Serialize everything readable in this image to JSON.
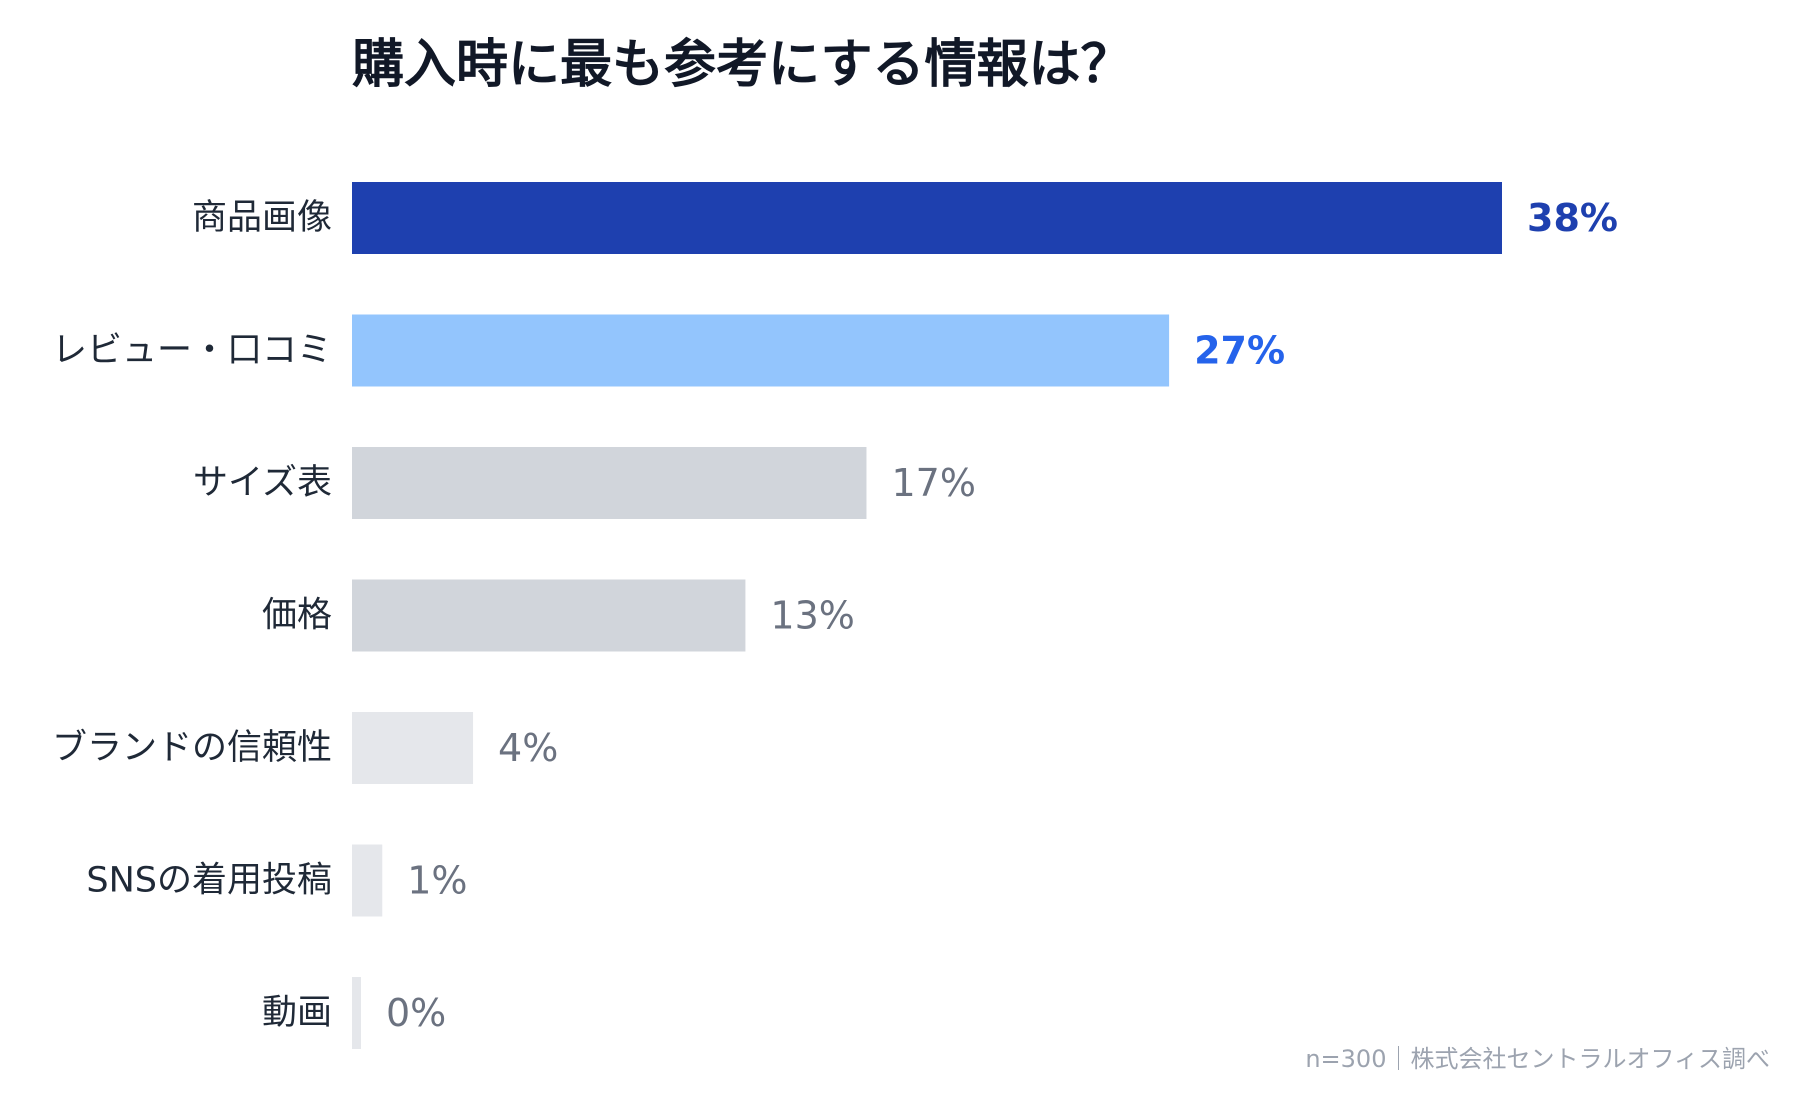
{
  "chart_data": {
    "type": "bar",
    "orientation": "horizontal",
    "title": "購入時に最も参考にする情報は？",
    "categories": [
      "商品画像",
      "レビュー・口コミ",
      "サイズ表",
      "価格",
      "ブランドの信頼性",
      "SNSの着用投稿",
      "動画"
    ],
    "values": [
      38,
      27,
      17,
      13,
      4,
      1,
      0
    ],
    "value_labels": [
      "38%",
      "27%",
      "17%",
      "13%",
      "4%",
      "1%",
      "0%"
    ],
    "unit": "%",
    "xlim": [
      0,
      38
    ],
    "grid": false,
    "legend": "none",
    "footnote": "n=300｜株式会社セントラルオフィス調べ"
  },
  "colors": {
    "bars": [
      "#1e40af",
      "#93c5fd",
      "#d1d5db",
      "#d1d5db",
      "#e5e7eb",
      "#e5e7eb",
      "#e5e7eb"
    ],
    "value_text": [
      "#1e40af",
      "#2563eb",
      "#6b7280",
      "#6b7280",
      "#6b7280",
      "#6b7280",
      "#6b7280"
    ],
    "value_bold": [
      true,
      true,
      false,
      false,
      false,
      false,
      false
    ]
  }
}
